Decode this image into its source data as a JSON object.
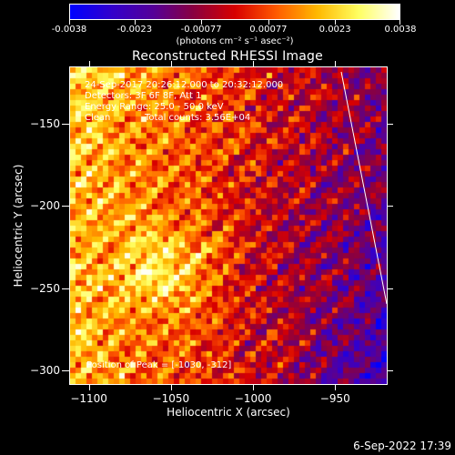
{
  "colorbar": {
    "tick_labels": [
      "-0.0038",
      "-0.0023",
      "-0.00077",
      "0.00077",
      "0.0023",
      "0.0038"
    ],
    "tick_values": [
      -0.0038,
      -0.0023,
      -0.00077,
      0.00077,
      0.0023,
      0.0038
    ],
    "range": [
      -0.0038,
      0.0038
    ],
    "units": "(photons cm⁻² s⁻¹ asec⁻²)",
    "colors": [
      "#0000ff",
      "#3300cc",
      "#550099",
      "#8a0040",
      "#d80000",
      "#ff5a00",
      "#ffb800",
      "#ffff60",
      "#ffffff"
    ]
  },
  "plot": {
    "title": "Reconstructed RHESSI Image",
    "xlabel": "Heliocentric X (arcsec)",
    "ylabel": "Heliocentric Y (arcsec)",
    "xlim": [
      -1112,
      -918
    ],
    "ylim": [
      -309,
      -115
    ],
    "x_ticks": [
      -1100,
      -1050,
      -1000,
      -950
    ],
    "x_tick_labels": [
      "−1100",
      "−1050",
      "−1000",
      "−950"
    ],
    "y_ticks": [
      -150,
      -200,
      -250,
      -300
    ],
    "y_tick_labels": [
      "−150",
      "−200",
      "−250",
      "−300"
    ],
    "limb_color": "#ffffff"
  },
  "annotations": {
    "time_range": "24-Sep-2017 20:26:12.000 to 20:32:12.000",
    "detectors": "Detectors: 3F 6F 8F, Att 1",
    "energy": "Energy Range: 25.0 - 50.0 keV",
    "method": "Clean",
    "total_counts": "Total counts: 3.56E+04",
    "peak": "Position of Peak = [-1030, -312]"
  },
  "footer": {
    "date": "6-Sep-2022 17:39"
  }
}
